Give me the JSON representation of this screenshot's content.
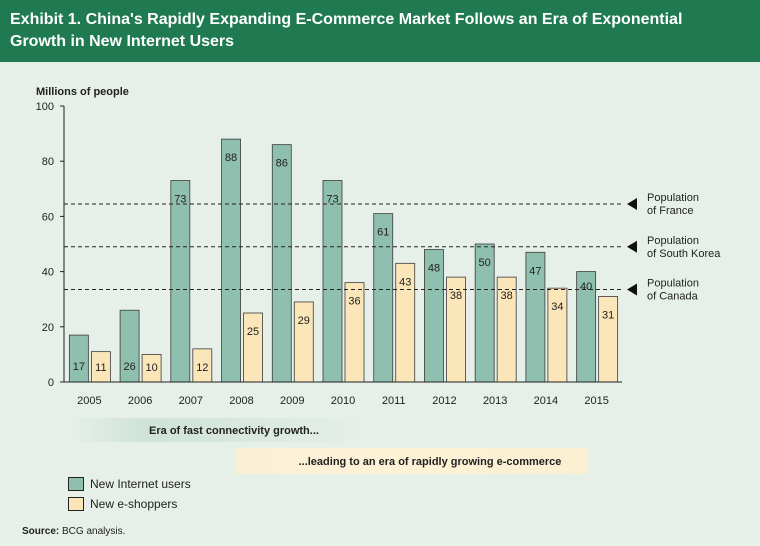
{
  "title": "Exhibit 1. China's Rapidly Expanding E-Commerce Market Follows an Era of Exponential Growth in New Internet Users",
  "source_label": "Source:",
  "source_text": "BCG analysis.",
  "legend": [
    {
      "label": "New Internet users",
      "color": "#8fbfae"
    },
    {
      "label": "New e-shoppers",
      "color": "#fbe6b9"
    }
  ],
  "eras": [
    {
      "label": "Era of fast connectivity growth..."
    },
    {
      "label": "...leading to an era of rapidly growing e-commerce"
    }
  ],
  "chart_data": {
    "type": "bar",
    "title": "",
    "ylabel": "Millions of people",
    "xlabel": "",
    "ylim": [
      0,
      100
    ],
    "yticks": [
      0,
      20,
      40,
      60,
      80,
      100
    ],
    "categories": [
      "2005",
      "2006",
      "2007",
      "2008",
      "2009",
      "2010",
      "2011",
      "2012",
      "2013",
      "2014",
      "2015"
    ],
    "series": [
      {
        "name": "New Internet users",
        "values": [
          17,
          26,
          73,
          88,
          86,
          73,
          61,
          48,
          50,
          47,
          40
        ]
      },
      {
        "name": "New e-shoppers",
        "values": [
          11,
          10,
          12,
          25,
          29,
          36,
          43,
          38,
          38,
          34,
          31
        ]
      }
    ],
    "reference_lines": [
      {
        "label": "Population of France",
        "lines": [
          "Population",
          "of France"
        ],
        "value": 64.5
      },
      {
        "label": "Population of South Korea",
        "lines": [
          "Population",
          "of South Korea"
        ],
        "value": 49
      },
      {
        "label": "Population of Canada",
        "lines": [
          "Population",
          "of Canada"
        ],
        "value": 33.5
      }
    ],
    "grid": false,
    "legend_position": "bottom-left"
  }
}
